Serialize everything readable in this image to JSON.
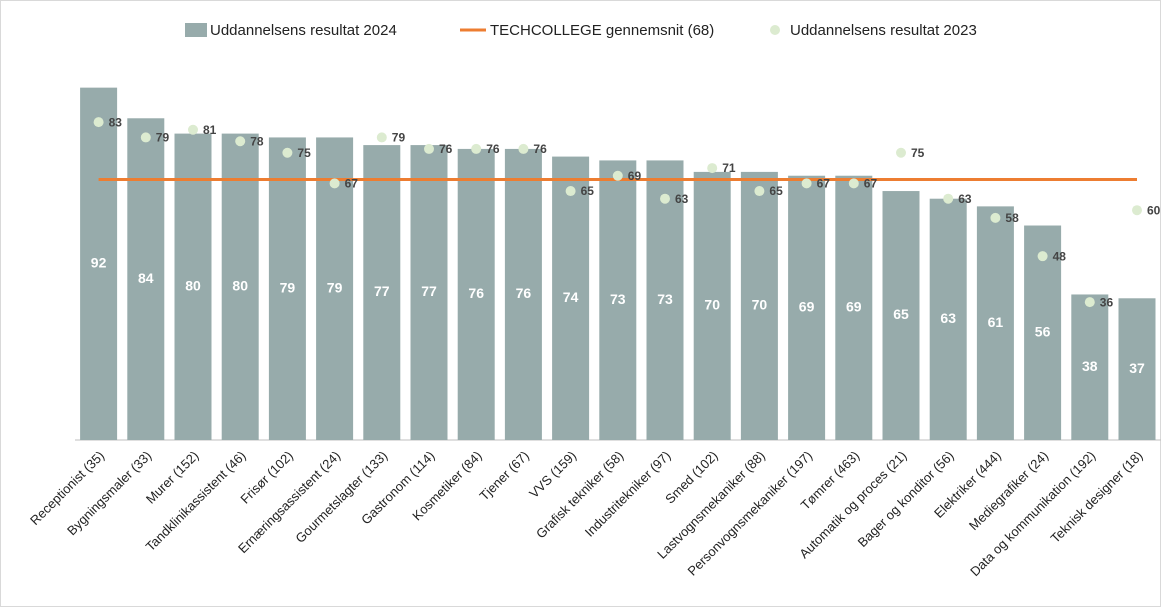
{
  "chart_data": {
    "type": "bar",
    "categories": [
      "Receptionist (35)",
      "Bygningsmaler (33)",
      "Murer (152)",
      "Tandklinikassistent (46)",
      "Frisør (102)",
      "Ernæringsassistent (24)",
      "Gourmetslagter (133)",
      "Gastronom (114)",
      "Kosmetiker (84)",
      "Tjener (67)",
      "VVS (159)",
      "Grafisk tekniker (58)",
      "Industritekniker (97)",
      "Smed (102)",
      "Lastvognsmekaniker (88)",
      "Personvognsmekaniker (197)",
      "Tømrer (463)",
      "Automatik og proces (21)",
      "Bager og konditor (56)",
      "Elektriker (444)",
      "Mediegrafiker (24)",
      "Data og kommunikation (192)",
      "Teknisk designer (18)"
    ],
    "series": [
      {
        "name": "Uddannelsens resultat 2024",
        "color": "#97abab",
        "values": [
          92,
          84,
          80,
          80,
          79,
          79,
          77,
          77,
          76,
          76,
          74,
          73,
          73,
          70,
          70,
          69,
          69,
          65,
          63,
          61,
          56,
          38,
          37
        ]
      },
      {
        "name": "Uddannelsens resultat 2023",
        "type": "scatter",
        "color": "#dcebd0",
        "values": [
          83,
          79,
          81,
          78,
          75,
          67,
          79,
          76,
          76,
          76,
          65,
          69,
          63,
          71,
          65,
          67,
          67,
          75,
          63,
          58,
          48,
          36,
          60
        ]
      }
    ],
    "average": {
      "name": "TECHCOLLEGE gennemsnit (68)",
      "value": 68,
      "color": "#ed7d31"
    },
    "ylim": [
      0,
      100
    ],
    "legend": "top"
  }
}
